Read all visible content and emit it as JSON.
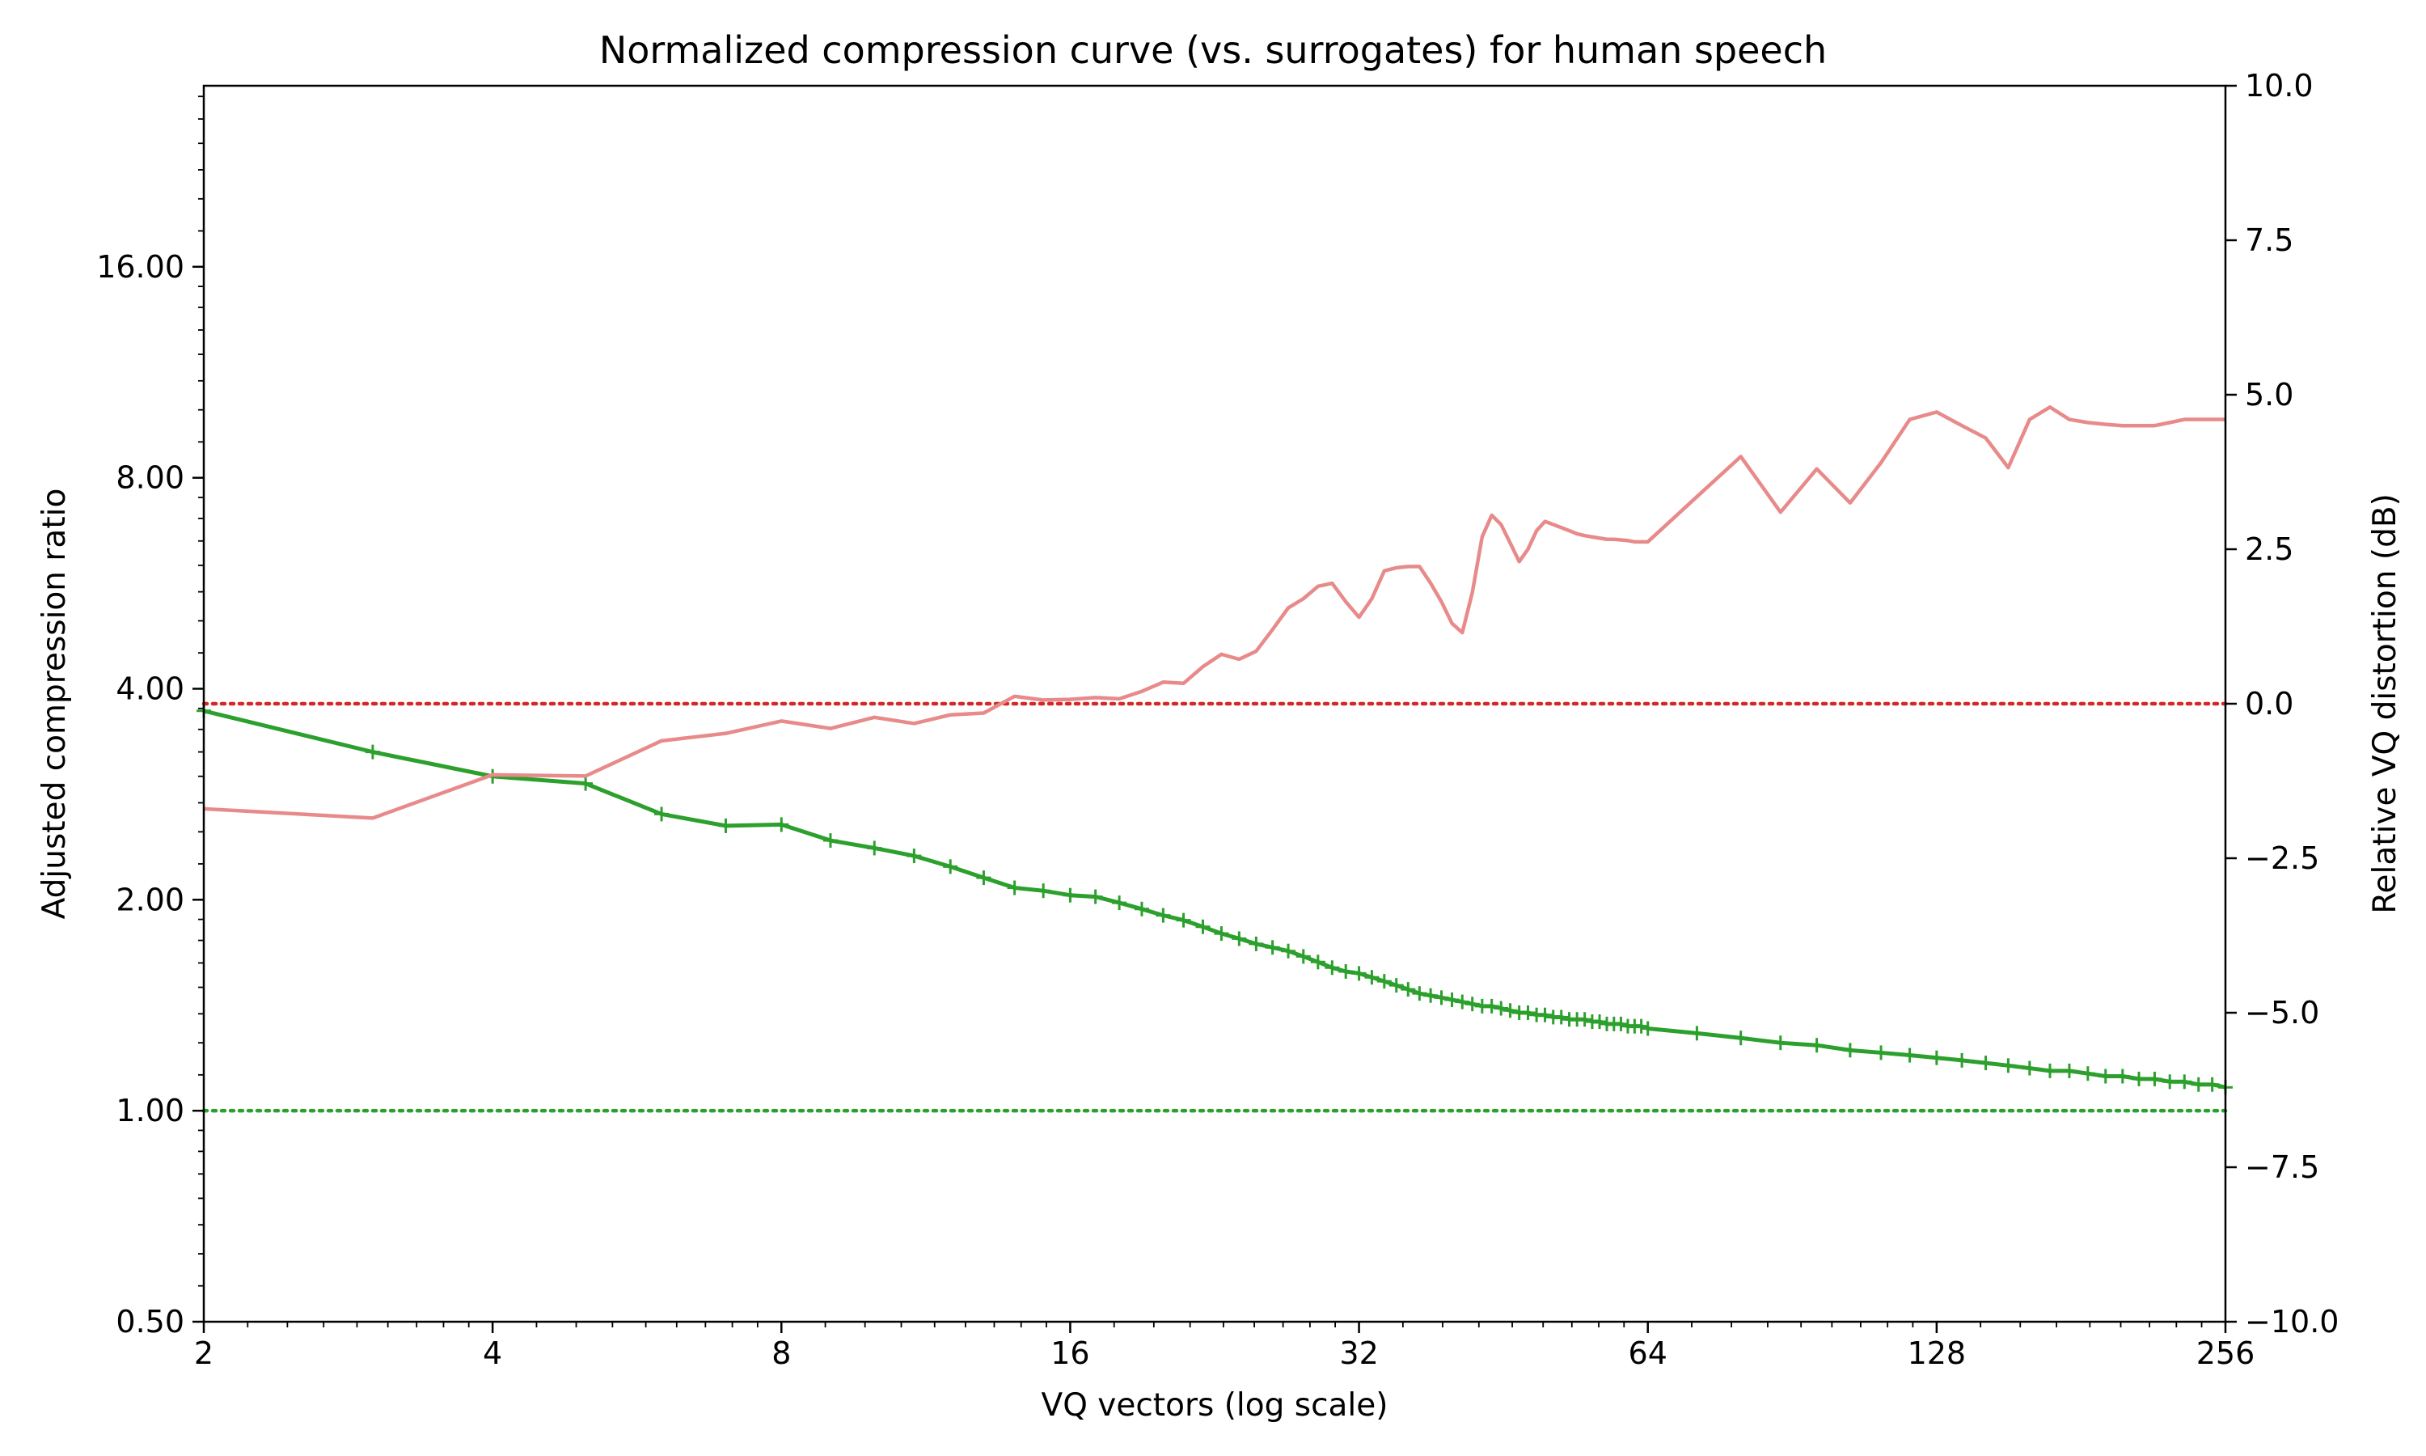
{
  "chart_data": {
    "type": "line",
    "title": "Normalized compression curve (vs. surrogates) for human speech",
    "xlabel": "VQ vectors (log scale)",
    "ylabel": "Adjusted compression ratio",
    "y2label": "Relative VQ distortion (dB)",
    "xscale": "log2",
    "xlim": [
      2,
      256
    ],
    "ylim": [
      0.5,
      29
    ],
    "y2lim": [
      -10,
      10
    ],
    "x_ticks": [
      "2",
      "4",
      "8",
      "16",
      "32",
      "64",
      "128",
      "256"
    ],
    "x_tick_values": [
      2,
      4,
      8,
      16,
      32,
      64,
      128,
      256
    ],
    "y_ticks": [
      "0.50",
      "1.00",
      "2.00",
      "4.00",
      "8.00",
      "16.00"
    ],
    "y_tick_values": [
      0.5,
      1,
      2,
      4,
      8,
      16
    ],
    "y2_ticks": [
      "−10.0",
      "−7.5",
      "−5.0",
      "−2.5",
      "0.0",
      "2.5",
      "5.0",
      "7.5",
      "10.0"
    ],
    "y2_tick_values": [
      -10,
      -7.5,
      -5,
      -2.5,
      0,
      2.5,
      5,
      7.5,
      10
    ],
    "grid": false,
    "legend": "none",
    "series": [
      {
        "axis": "left",
        "color": "#2ca02c",
        "marker": "+",
        "x": [
          2,
          3,
          4,
          5,
          6,
          7,
          8,
          9,
          10,
          11,
          12,
          13,
          14,
          15,
          16,
          17,
          18,
          19,
          20,
          21,
          22,
          23,
          24,
          25,
          26,
          27,
          28,
          29,
          30,
          31,
          32,
          33,
          34,
          35,
          36,
          37,
          38,
          39,
          40,
          41,
          42,
          43,
          44,
          45,
          46,
          47,
          48,
          49,
          50,
          51,
          52,
          53,
          54,
          55,
          56,
          57,
          58,
          59,
          60,
          61,
          62,
          63,
          64,
          72,
          80,
          88,
          96,
          104,
          112,
          120,
          128,
          136,
          144,
          152,
          160,
          168,
          176,
          184,
          192,
          200,
          208,
          216,
          224,
          232,
          240,
          248,
          256
        ],
        "values": [
          3.72,
          3.25,
          3.0,
          2.93,
          2.65,
          2.55,
          2.56,
          2.43,
          2.37,
          2.31,
          2.23,
          2.15,
          2.08,
          2.06,
          2.03,
          2.02,
          1.98,
          1.94,
          1.9,
          1.87,
          1.83,
          1.79,
          1.76,
          1.73,
          1.71,
          1.69,
          1.66,
          1.63,
          1.6,
          1.58,
          1.57,
          1.55,
          1.53,
          1.51,
          1.49,
          1.47,
          1.46,
          1.45,
          1.44,
          1.43,
          1.42,
          1.41,
          1.41,
          1.4,
          1.39,
          1.38,
          1.38,
          1.37,
          1.37,
          1.36,
          1.36,
          1.35,
          1.35,
          1.35,
          1.34,
          1.34,
          1.33,
          1.33,
          1.33,
          1.32,
          1.32,
          1.32,
          1.31,
          1.29,
          1.27,
          1.25,
          1.24,
          1.22,
          1.21,
          1.2,
          1.19,
          1.18,
          1.17,
          1.16,
          1.15,
          1.14,
          1.14,
          1.13,
          1.12,
          1.12,
          1.11,
          1.11,
          1.1,
          1.1,
          1.09,
          1.09,
          1.08
        ]
      },
      {
        "axis": "right",
        "color": "#e88a8a",
        "x": [
          2,
          3,
          4,
          5,
          6,
          7,
          8,
          9,
          10,
          11,
          12,
          13,
          14,
          15,
          16,
          17,
          18,
          19,
          20,
          21,
          22,
          23,
          24,
          25,
          26,
          27,
          28,
          29,
          30,
          31,
          32,
          33,
          34,
          35,
          36,
          37,
          38,
          39,
          40,
          41,
          42,
          43,
          44,
          45,
          46,
          47,
          48,
          49,
          50,
          51,
          52,
          53,
          54,
          55,
          56,
          57,
          58,
          59,
          60,
          61,
          62,
          63,
          64,
          72,
          80,
          88,
          96,
          104,
          112,
          120,
          128,
          136,
          144,
          152,
          160,
          168,
          176,
          184,
          192,
          200,
          208,
          216,
          224,
          232,
          240,
          248,
          256
        ],
        "values": [
          -1.7,
          -1.85,
          -1.15,
          -1.17,
          -0.6,
          -0.48,
          -0.28,
          -0.4,
          -0.22,
          -0.32,
          -0.18,
          -0.15,
          0.12,
          0.06,
          0.07,
          0.1,
          0.08,
          0.2,
          0.35,
          0.33,
          0.6,
          0.8,
          0.72,
          0.85,
          1.2,
          1.55,
          1.7,
          1.9,
          1.95,
          1.65,
          1.4,
          1.7,
          2.15,
          2.2,
          2.22,
          2.22,
          1.95,
          1.65,
          1.3,
          1.15,
          1.8,
          2.7,
          3.05,
          2.9,
          2.6,
          2.3,
          2.5,
          2.8,
          2.95,
          2.9,
          2.85,
          2.8,
          2.75,
          2.72,
          2.7,
          2.68,
          2.66,
          2.66,
          2.65,
          2.64,
          2.62,
          2.62,
          2.62,
          3.35,
          4.0,
          3.1,
          3.8,
          3.25,
          3.9,
          4.6,
          4.72,
          4.5,
          4.3,
          3.82,
          4.6,
          4.8,
          4.6,
          4.55,
          4.52,
          4.5,
          4.5,
          4.5,
          4.55,
          4.6,
          4.6,
          4.6,
          4.6
        ]
      }
    ],
    "reference_lines": [
      {
        "axis": "left",
        "value": 1.0,
        "color": "#2ca02c",
        "style": "dotted"
      },
      {
        "axis": "right",
        "value": 0.0,
        "color": "#d62728",
        "style": "dotted"
      }
    ]
  }
}
